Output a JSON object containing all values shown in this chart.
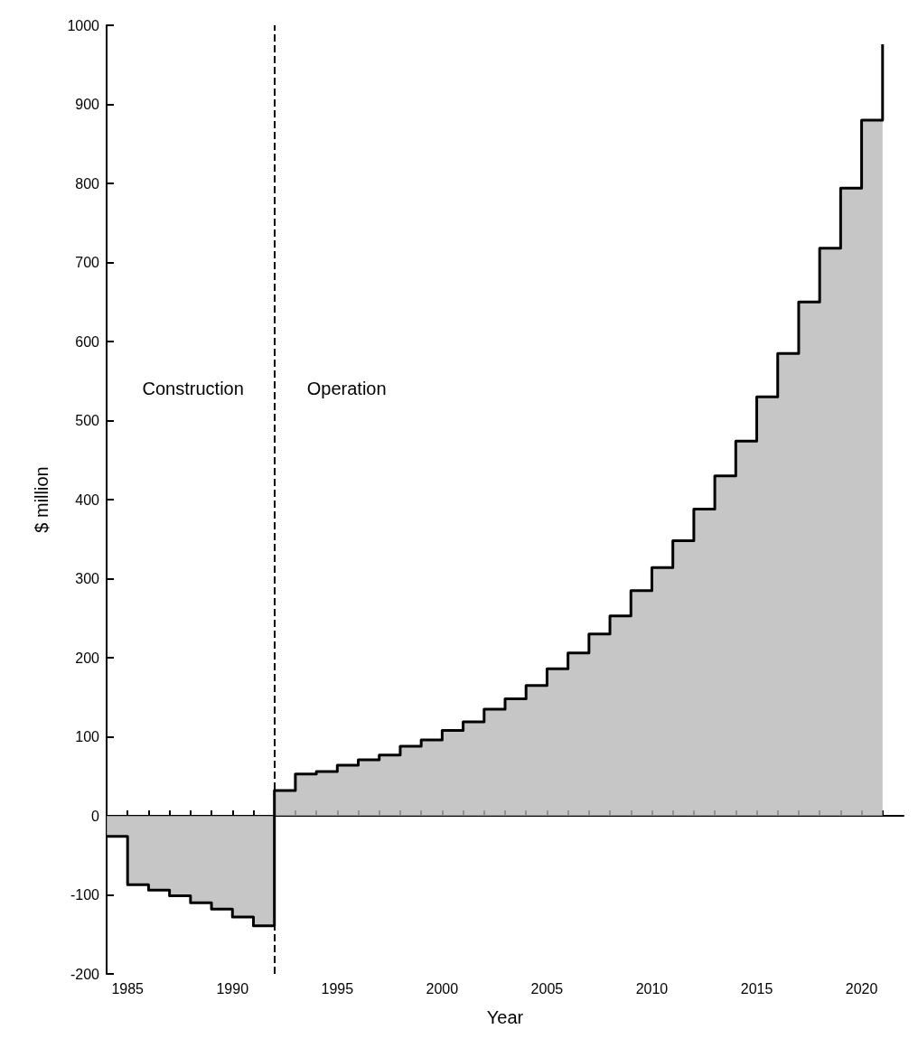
{
  "chart_data": {
    "type": "step",
    "xlabel": "Year",
    "ylabel": "$ million",
    "x": [
      1984,
      1985,
      1986,
      1987,
      1988,
      1989,
      1990,
      1991,
      1992,
      1993,
      1994,
      1995,
      1996,
      1997,
      1998,
      1999,
      2000,
      2001,
      2002,
      2003,
      2004,
      2005,
      2006,
      2007,
      2008,
      2009,
      2010,
      2011,
      2012,
      2013,
      2014,
      2015,
      2016,
      2017,
      2018,
      2019,
      2020,
      2021
    ],
    "series": [
      {
        "color": "#000000",
        "values": [
          -26,
          -87,
          -94,
          -101,
          -110,
          -118,
          -128,
          -139,
          32,
          53,
          56,
          64,
          71,
          77,
          88,
          96,
          108,
          119,
          135,
          148,
          165,
          186,
          206,
          230,
          253,
          285,
          314,
          348,
          388,
          430,
          474,
          530,
          585,
          650,
          718,
          794,
          880,
          976
        ]
      }
    ],
    "xlim": [
      1984,
      2022
    ],
    "ylim": [
      -200,
      1000
    ],
    "xticks": [
      {
        "value": 1984,
        "label": null
      },
      1985,
      {
        "value": 1986,
        "label": null
      },
      {
        "value": 1987,
        "label": null
      },
      {
        "value": 1988,
        "label": null
      },
      {
        "value": 1989,
        "label": null
      },
      1990,
      {
        "value": 1991,
        "label": null
      },
      {
        "value": 1992,
        "label": null
      },
      {
        "value": 1993,
        "label": null
      },
      {
        "value": 1994,
        "label": null
      },
      1995,
      {
        "value": 1996,
        "label": null
      },
      {
        "value": 1997,
        "label": null
      },
      {
        "value": 1998,
        "label": null
      },
      {
        "value": 1999,
        "label": null
      },
      2000,
      {
        "value": 2001,
        "label": null
      },
      {
        "value": 2002,
        "label": null
      },
      {
        "value": 2003,
        "label": null
      },
      {
        "value": 2004,
        "label": null
      },
      2005,
      {
        "value": 2006,
        "label": null
      },
      {
        "value": 2007,
        "label": null
      },
      {
        "value": 2008,
        "label": null
      },
      {
        "value": 2009,
        "label": null
      },
      2010,
      {
        "value": 2011,
        "label": null
      },
      {
        "value": 2012,
        "label": null
      },
      {
        "value": 2013,
        "label": null
      },
      {
        "value": 2014,
        "label": null
      },
      2015,
      {
        "value": 2016,
        "label": null
      },
      {
        "value": 2017,
        "label": null
      },
      {
        "value": 2018,
        "label": null
      },
      {
        "value": 2019,
        "label": null
      },
      2020,
      {
        "value": 2021,
        "label": null
      }
    ],
    "yticks": [
      -200,
      -100,
      0,
      100,
      200,
      300,
      400,
      500,
      600,
      700,
      800,
      900,
      1000
    ],
    "ref_lines": [
      {
        "axis": "x",
        "value": 1992,
        "line_style": "dashed",
        "color": "#000000"
      }
    ],
    "annotations": [
      "Construction",
      "Operation"
    ],
    "grid": false,
    "marker": "none",
    "line_style": "solid"
  }
}
